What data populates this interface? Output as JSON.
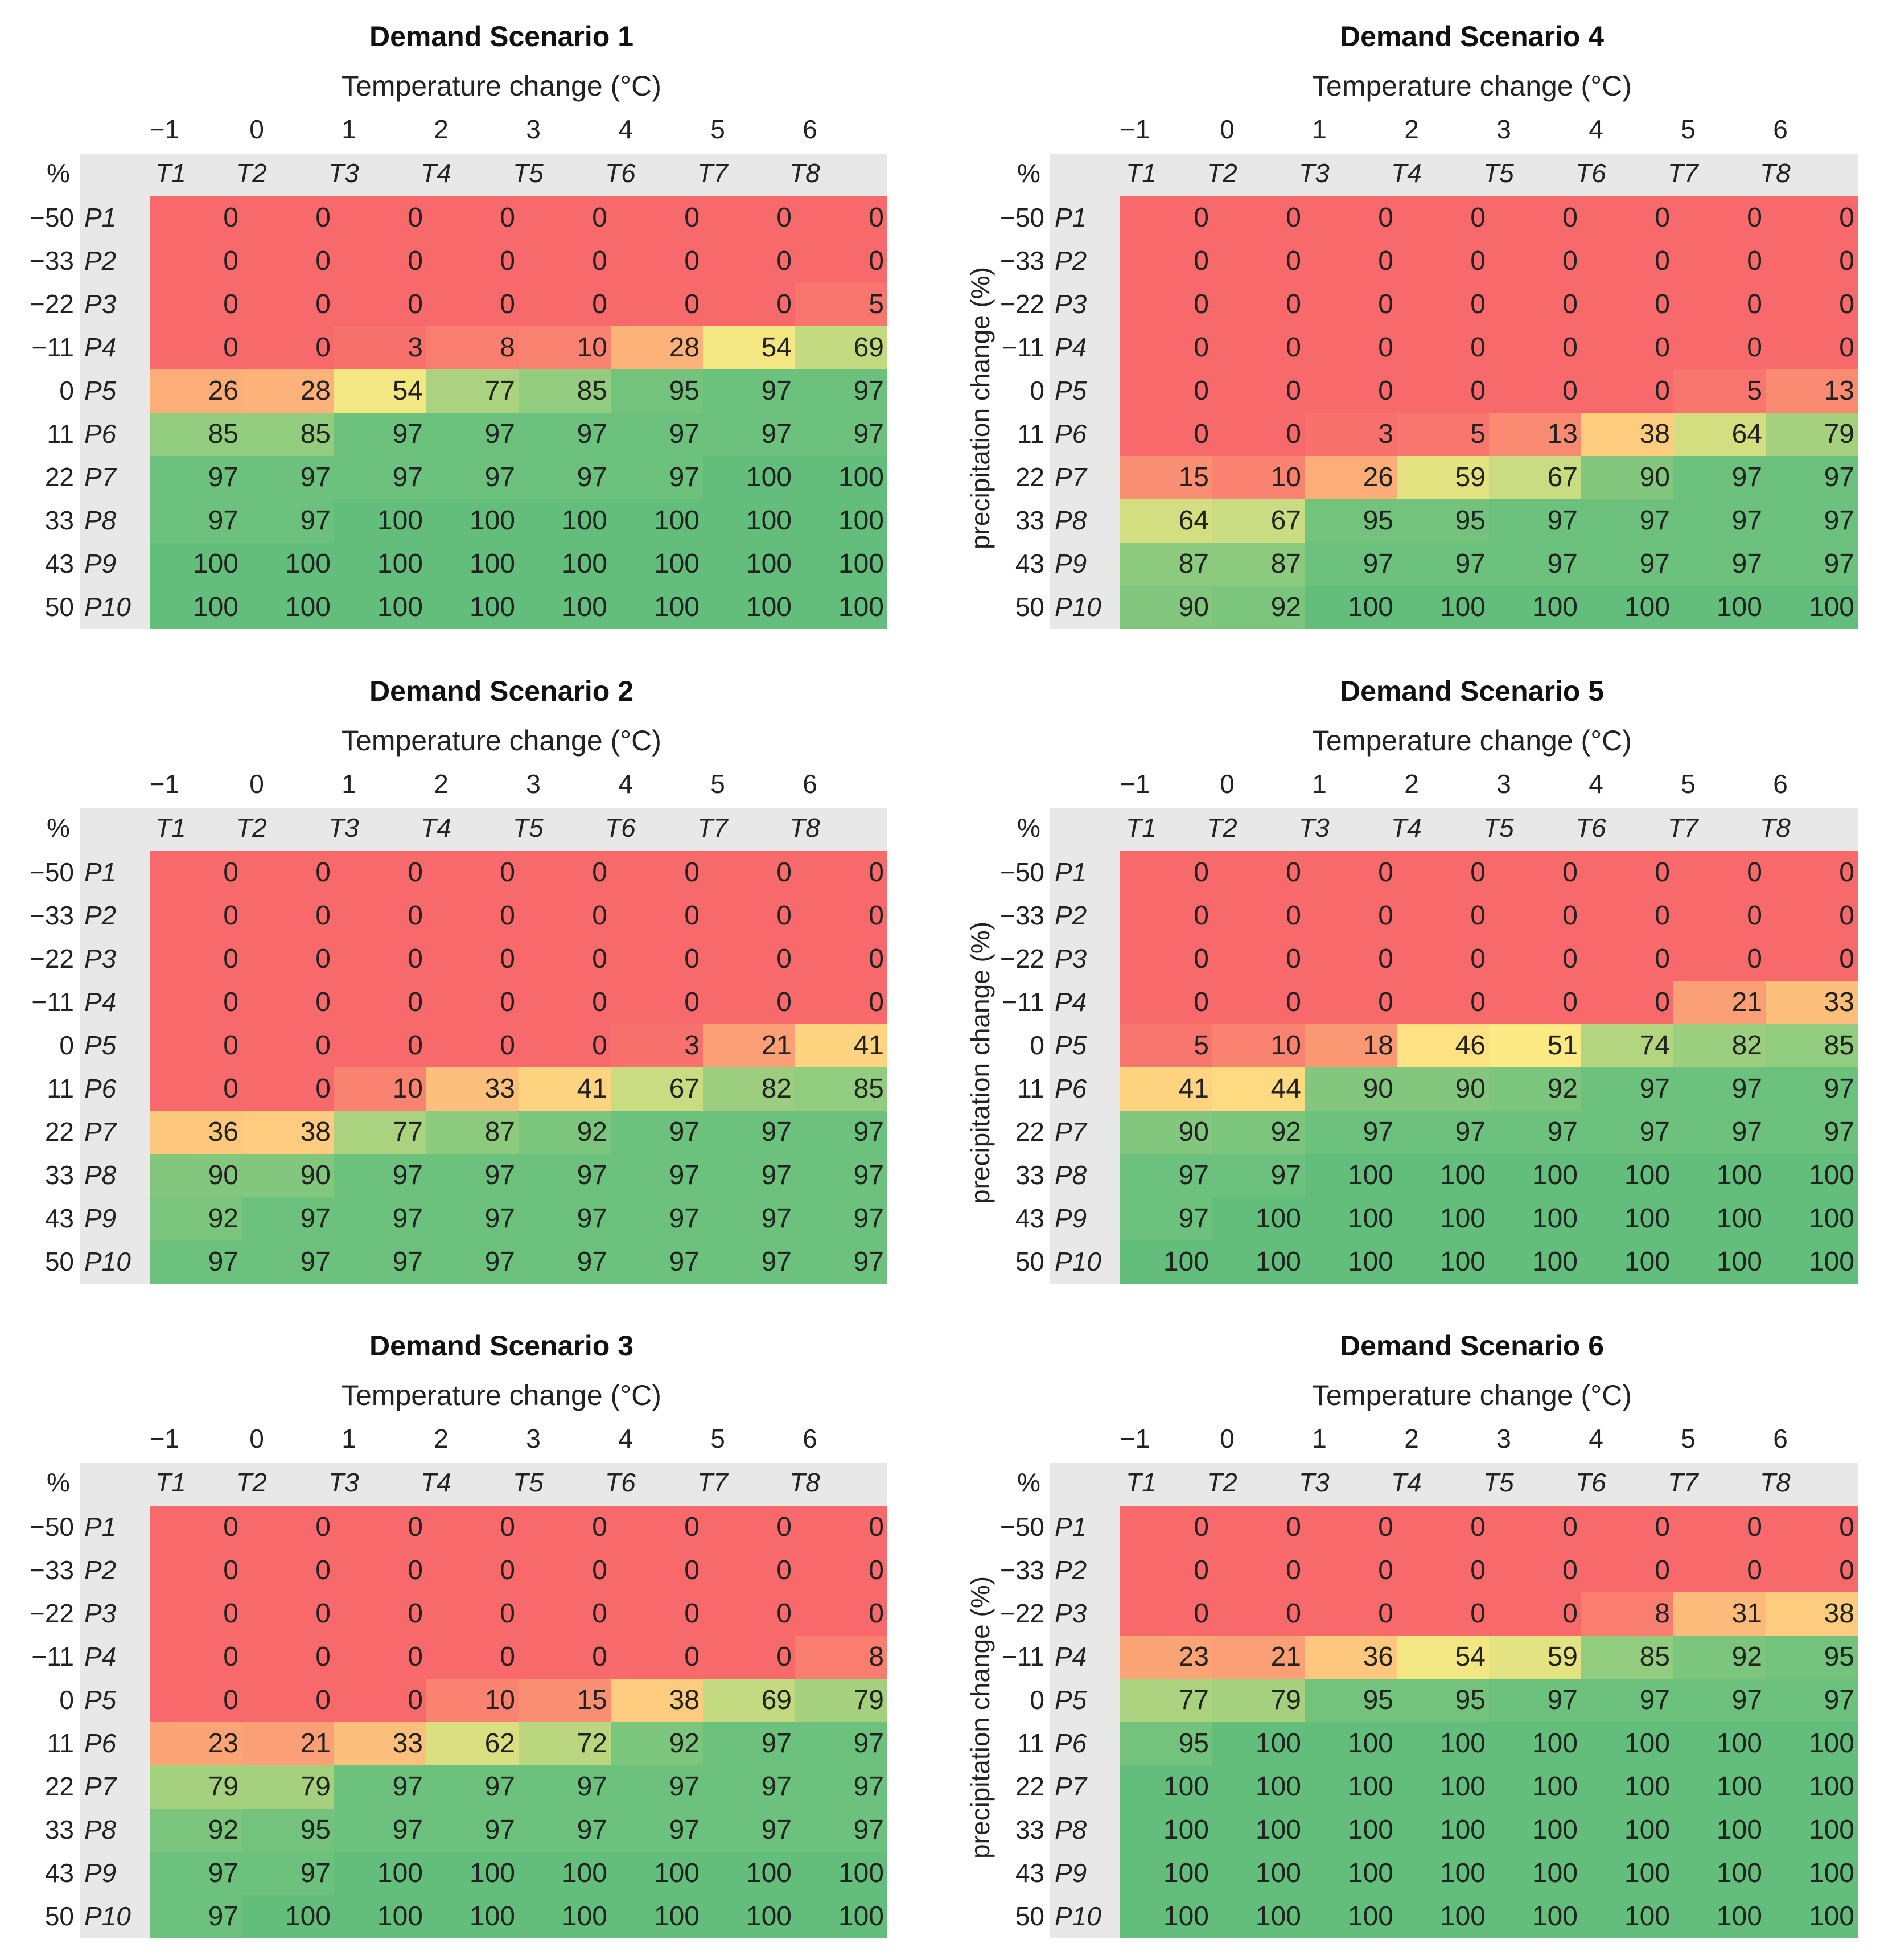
{
  "chart_data": [
    {
      "type": "heatmap",
      "title": "Demand Scenario 1",
      "xlabel": "Temperature change (°C)",
      "ylabel": "",
      "x_values": [
        "−1",
        "0",
        "1",
        "2",
        "3",
        "4",
        "5",
        "6"
      ],
      "x_codes": [
        "T1",
        "T2",
        "T3",
        "T4",
        "T5",
        "T6",
        "T7",
        "T8"
      ],
      "corner": "%",
      "y_values": [
        "−50",
        "−33",
        "−22",
        "−11",
        "0",
        "11",
        "22",
        "33",
        "43",
        "50"
      ],
      "y_codes": [
        "P1",
        "P2",
        "P3",
        "P4",
        "P5",
        "P6",
        "P7",
        "P8",
        "P9",
        "P10"
      ],
      "values": [
        [
          0,
          0,
          0,
          0,
          0,
          0,
          0,
          0
        ],
        [
          0,
          0,
          0,
          0,
          0,
          0,
          0,
          0
        ],
        [
          0,
          0,
          0,
          0,
          0,
          0,
          0,
          5
        ],
        [
          0,
          0,
          3,
          8,
          10,
          28,
          54,
          69
        ],
        [
          26,
          28,
          54,
          77,
          85,
          95,
          97,
          97
        ],
        [
          85,
          85,
          97,
          97,
          97,
          97,
          97,
          97
        ],
        [
          97,
          97,
          97,
          97,
          97,
          97,
          100,
          100
        ],
        [
          97,
          97,
          100,
          100,
          100,
          100,
          100,
          100
        ],
        [
          100,
          100,
          100,
          100,
          100,
          100,
          100,
          100
        ],
        [
          100,
          100,
          100,
          100,
          100,
          100,
          100,
          100
        ]
      ]
    },
    {
      "type": "heatmap",
      "title": "Demand Scenario 4",
      "xlabel": "Temperature change (°C)",
      "ylabel": "precipitation change (%)",
      "x_values": [
        "−1",
        "0",
        "1",
        "2",
        "3",
        "4",
        "5",
        "6"
      ],
      "x_codes": [
        "T1",
        "T2",
        "T3",
        "T4",
        "T5",
        "T6",
        "T7",
        "T8"
      ],
      "corner": "%",
      "y_values": [
        "−50",
        "−33",
        "−22",
        "−11",
        "0",
        "11",
        "22",
        "33",
        "43",
        "50"
      ],
      "y_codes": [
        "P1",
        "P2",
        "P3",
        "P4",
        "P5",
        "P6",
        "P7",
        "P8",
        "P9",
        "P10"
      ],
      "values": [
        [
          0,
          0,
          0,
          0,
          0,
          0,
          0,
          0
        ],
        [
          0,
          0,
          0,
          0,
          0,
          0,
          0,
          0
        ],
        [
          0,
          0,
          0,
          0,
          0,
          0,
          0,
          0
        ],
        [
          0,
          0,
          0,
          0,
          0,
          0,
          0,
          0
        ],
        [
          0,
          0,
          0,
          0,
          0,
          0,
          5,
          13
        ],
        [
          0,
          0,
          3,
          5,
          13,
          38,
          64,
          79
        ],
        [
          15,
          10,
          26,
          59,
          67,
          90,
          97,
          97
        ],
        [
          64,
          67,
          95,
          95,
          97,
          97,
          97,
          97
        ],
        [
          87,
          87,
          97,
          97,
          97,
          97,
          97,
          97
        ],
        [
          90,
          92,
          100,
          100,
          100,
          100,
          100,
          100
        ]
      ]
    },
    {
      "type": "heatmap",
      "title": "Demand Scenario 2",
      "xlabel": "Temperature change (°C)",
      "ylabel": "",
      "x_values": [
        "−1",
        "0",
        "1",
        "2",
        "3",
        "4",
        "5",
        "6"
      ],
      "x_codes": [
        "T1",
        "T2",
        "T3",
        "T4",
        "T5",
        "T6",
        "T7",
        "T8"
      ],
      "corner": "%",
      "y_values": [
        "−50",
        "−33",
        "−22",
        "−11",
        "0",
        "11",
        "22",
        "33",
        "43",
        "50"
      ],
      "y_codes": [
        "P1",
        "P2",
        "P3",
        "P4",
        "P5",
        "P6",
        "P7",
        "P8",
        "P9",
        "P10"
      ],
      "values": [
        [
          0,
          0,
          0,
          0,
          0,
          0,
          0,
          0
        ],
        [
          0,
          0,
          0,
          0,
          0,
          0,
          0,
          0
        ],
        [
          0,
          0,
          0,
          0,
          0,
          0,
          0,
          0
        ],
        [
          0,
          0,
          0,
          0,
          0,
          0,
          0,
          0
        ],
        [
          0,
          0,
          0,
          0,
          0,
          3,
          21,
          41
        ],
        [
          0,
          0,
          10,
          33,
          41,
          67,
          82,
          85
        ],
        [
          36,
          38,
          77,
          87,
          92,
          97,
          97,
          97
        ],
        [
          90,
          90,
          97,
          97,
          97,
          97,
          97,
          97
        ],
        [
          92,
          97,
          97,
          97,
          97,
          97,
          97,
          97
        ],
        [
          97,
          97,
          97,
          97,
          97,
          97,
          97,
          97
        ]
      ]
    },
    {
      "type": "heatmap",
      "title": "Demand Scenario 5",
      "xlabel": "Temperature change (°C)",
      "ylabel": "precipitation change (%)",
      "x_values": [
        "−1",
        "0",
        "1",
        "2",
        "3",
        "4",
        "5",
        "6"
      ],
      "x_codes": [
        "T1",
        "T2",
        "T3",
        "T4",
        "T5",
        "T6",
        "T7",
        "T8"
      ],
      "corner": "%",
      "y_values": [
        "−50",
        "−33",
        "−22",
        "−11",
        "0",
        "11",
        "22",
        "33",
        "43",
        "50"
      ],
      "y_codes": [
        "P1",
        "P2",
        "P3",
        "P4",
        "P5",
        "P6",
        "P7",
        "P8",
        "P9",
        "P10"
      ],
      "values": [
        [
          0,
          0,
          0,
          0,
          0,
          0,
          0,
          0
        ],
        [
          0,
          0,
          0,
          0,
          0,
          0,
          0,
          0
        ],
        [
          0,
          0,
          0,
          0,
          0,
          0,
          0,
          0
        ],
        [
          0,
          0,
          0,
          0,
          0,
          0,
          21,
          33
        ],
        [
          5,
          10,
          18,
          46,
          51,
          74,
          82,
          85
        ],
        [
          41,
          44,
          90,
          90,
          92,
          97,
          97,
          97
        ],
        [
          90,
          92,
          97,
          97,
          97,
          97,
          97,
          97
        ],
        [
          97,
          97,
          100,
          100,
          100,
          100,
          100,
          100
        ],
        [
          97,
          100,
          100,
          100,
          100,
          100,
          100,
          100
        ],
        [
          100,
          100,
          100,
          100,
          100,
          100,
          100,
          100
        ]
      ]
    },
    {
      "type": "heatmap",
      "title": "Demand Scenario 3",
      "xlabel": "Temperature change (°C)",
      "ylabel": "",
      "x_values": [
        "−1",
        "0",
        "1",
        "2",
        "3",
        "4",
        "5",
        "6"
      ],
      "x_codes": [
        "T1",
        "T2",
        "T3",
        "T4",
        "T5",
        "T6",
        "T7",
        "T8"
      ],
      "corner": "%",
      "y_values": [
        "−50",
        "−33",
        "−22",
        "−11",
        "0",
        "11",
        "22",
        "33",
        "43",
        "50"
      ],
      "y_codes": [
        "P1",
        "P2",
        "P3",
        "P4",
        "P5",
        "P6",
        "P7",
        "P8",
        "P9",
        "P10"
      ],
      "values": [
        [
          0,
          0,
          0,
          0,
          0,
          0,
          0,
          0
        ],
        [
          0,
          0,
          0,
          0,
          0,
          0,
          0,
          0
        ],
        [
          0,
          0,
          0,
          0,
          0,
          0,
          0,
          0
        ],
        [
          0,
          0,
          0,
          0,
          0,
          0,
          0,
          8
        ],
        [
          0,
          0,
          0,
          10,
          15,
          38,
          69,
          79
        ],
        [
          23,
          21,
          33,
          62,
          72,
          92,
          97,
          97
        ],
        [
          79,
          79,
          97,
          97,
          97,
          97,
          97,
          97
        ],
        [
          92,
          95,
          97,
          97,
          97,
          97,
          97,
          97
        ],
        [
          97,
          97,
          100,
          100,
          100,
          100,
          100,
          100
        ],
        [
          97,
          100,
          100,
          100,
          100,
          100,
          100,
          100
        ]
      ]
    },
    {
      "type": "heatmap",
      "title": "Demand Scenario 6",
      "xlabel": "Temperature change (°C)",
      "ylabel": "precipitation change (%)",
      "x_values": [
        "−1",
        "0",
        "1",
        "2",
        "3",
        "4",
        "5",
        "6"
      ],
      "x_codes": [
        "T1",
        "T2",
        "T3",
        "T4",
        "T5",
        "T6",
        "T7",
        "T8"
      ],
      "corner": "%",
      "y_values": [
        "−50",
        "−33",
        "−22",
        "−11",
        "0",
        "11",
        "22",
        "33",
        "43",
        "50"
      ],
      "y_codes": [
        "P1",
        "P2",
        "P3",
        "P4",
        "P5",
        "P6",
        "P7",
        "P8",
        "P9",
        "P10"
      ],
      "values": [
        [
          0,
          0,
          0,
          0,
          0,
          0,
          0,
          0
        ],
        [
          0,
          0,
          0,
          0,
          0,
          0,
          0,
          0
        ],
        [
          0,
          0,
          0,
          0,
          0,
          8,
          31,
          38
        ],
        [
          23,
          21,
          36,
          54,
          59,
          85,
          92,
          95
        ],
        [
          77,
          79,
          95,
          95,
          97,
          97,
          97,
          97
        ],
        [
          95,
          100,
          100,
          100,
          100,
          100,
          100,
          100
        ],
        [
          100,
          100,
          100,
          100,
          100,
          100,
          100,
          100
        ],
        [
          100,
          100,
          100,
          100,
          100,
          100,
          100,
          100
        ],
        [
          100,
          100,
          100,
          100,
          100,
          100,
          100,
          100
        ],
        [
          100,
          100,
          100,
          100,
          100,
          100,
          100,
          100
        ]
      ]
    }
  ],
  "colors": {
    "low": "#f8696b",
    "mid": "#ffeb84",
    "high": "#63be7b",
    "header": "#e8e8e8"
  }
}
